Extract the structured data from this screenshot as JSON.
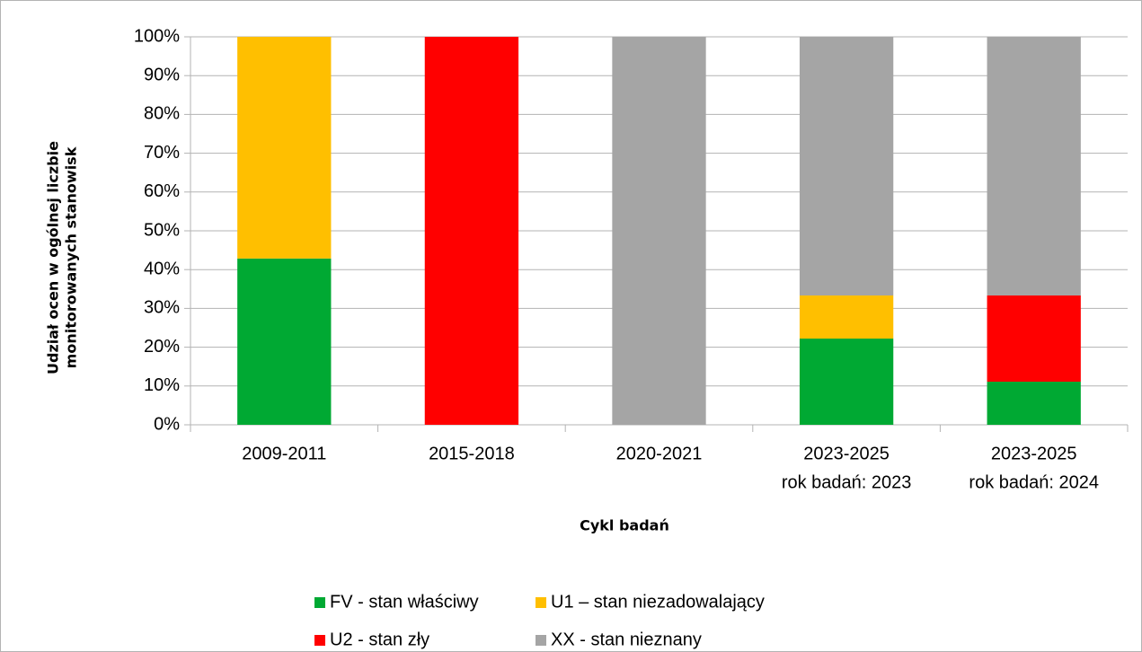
{
  "chart_data": {
    "type": "stacked_bar",
    "ylabel": [
      "Udział ocen w ogólnej liczbie",
      "monitorowanych stanowisk"
    ],
    "xlabel": "Cykl badań",
    "categories": [
      [
        "2009-2011"
      ],
      [
        "2015-2018"
      ],
      [
        "2020-2021"
      ],
      [
        "2023-2025",
        "rok badań: 2023"
      ],
      [
        "2023-2025",
        "rok badań: 2024"
      ]
    ],
    "series": [
      {
        "name": "FV - stan właściwy",
        "color": "#00a933",
        "values": [
          42.86,
          0,
          0,
          22.22,
          11.11
        ]
      },
      {
        "name": "U1 – stan niezadowalający",
        "color": "#ffbf00",
        "values": [
          57.14,
          0,
          0,
          11.11,
          0
        ]
      },
      {
        "name": "U2 - stan zły",
        "color": "#ff0000",
        "values": [
          0,
          100,
          0,
          0,
          22.22
        ]
      },
      {
        "name": "XX - stan nieznany",
        "color": "#a5a5a5",
        "values": [
          0,
          0,
          100,
          66.67,
          66.67
        ]
      }
    ],
    "ylim": [
      0,
      100
    ],
    "yticks": [
      {
        "value": 0,
        "label": "0%"
      },
      {
        "value": 10,
        "label": "10%"
      },
      {
        "value": 20,
        "label": "20%"
      },
      {
        "value": 30,
        "label": "30%"
      },
      {
        "value": 40,
        "label": "40%"
      },
      {
        "value": 50,
        "label": "50%"
      },
      {
        "value": 60,
        "label": "60%"
      },
      {
        "value": 70,
        "label": "70%"
      },
      {
        "value": 80,
        "label": "80%"
      },
      {
        "value": 90,
        "label": "90%"
      },
      {
        "value": 100,
        "label": "100%"
      }
    ],
    "grid": true,
    "legend": "bottom"
  }
}
